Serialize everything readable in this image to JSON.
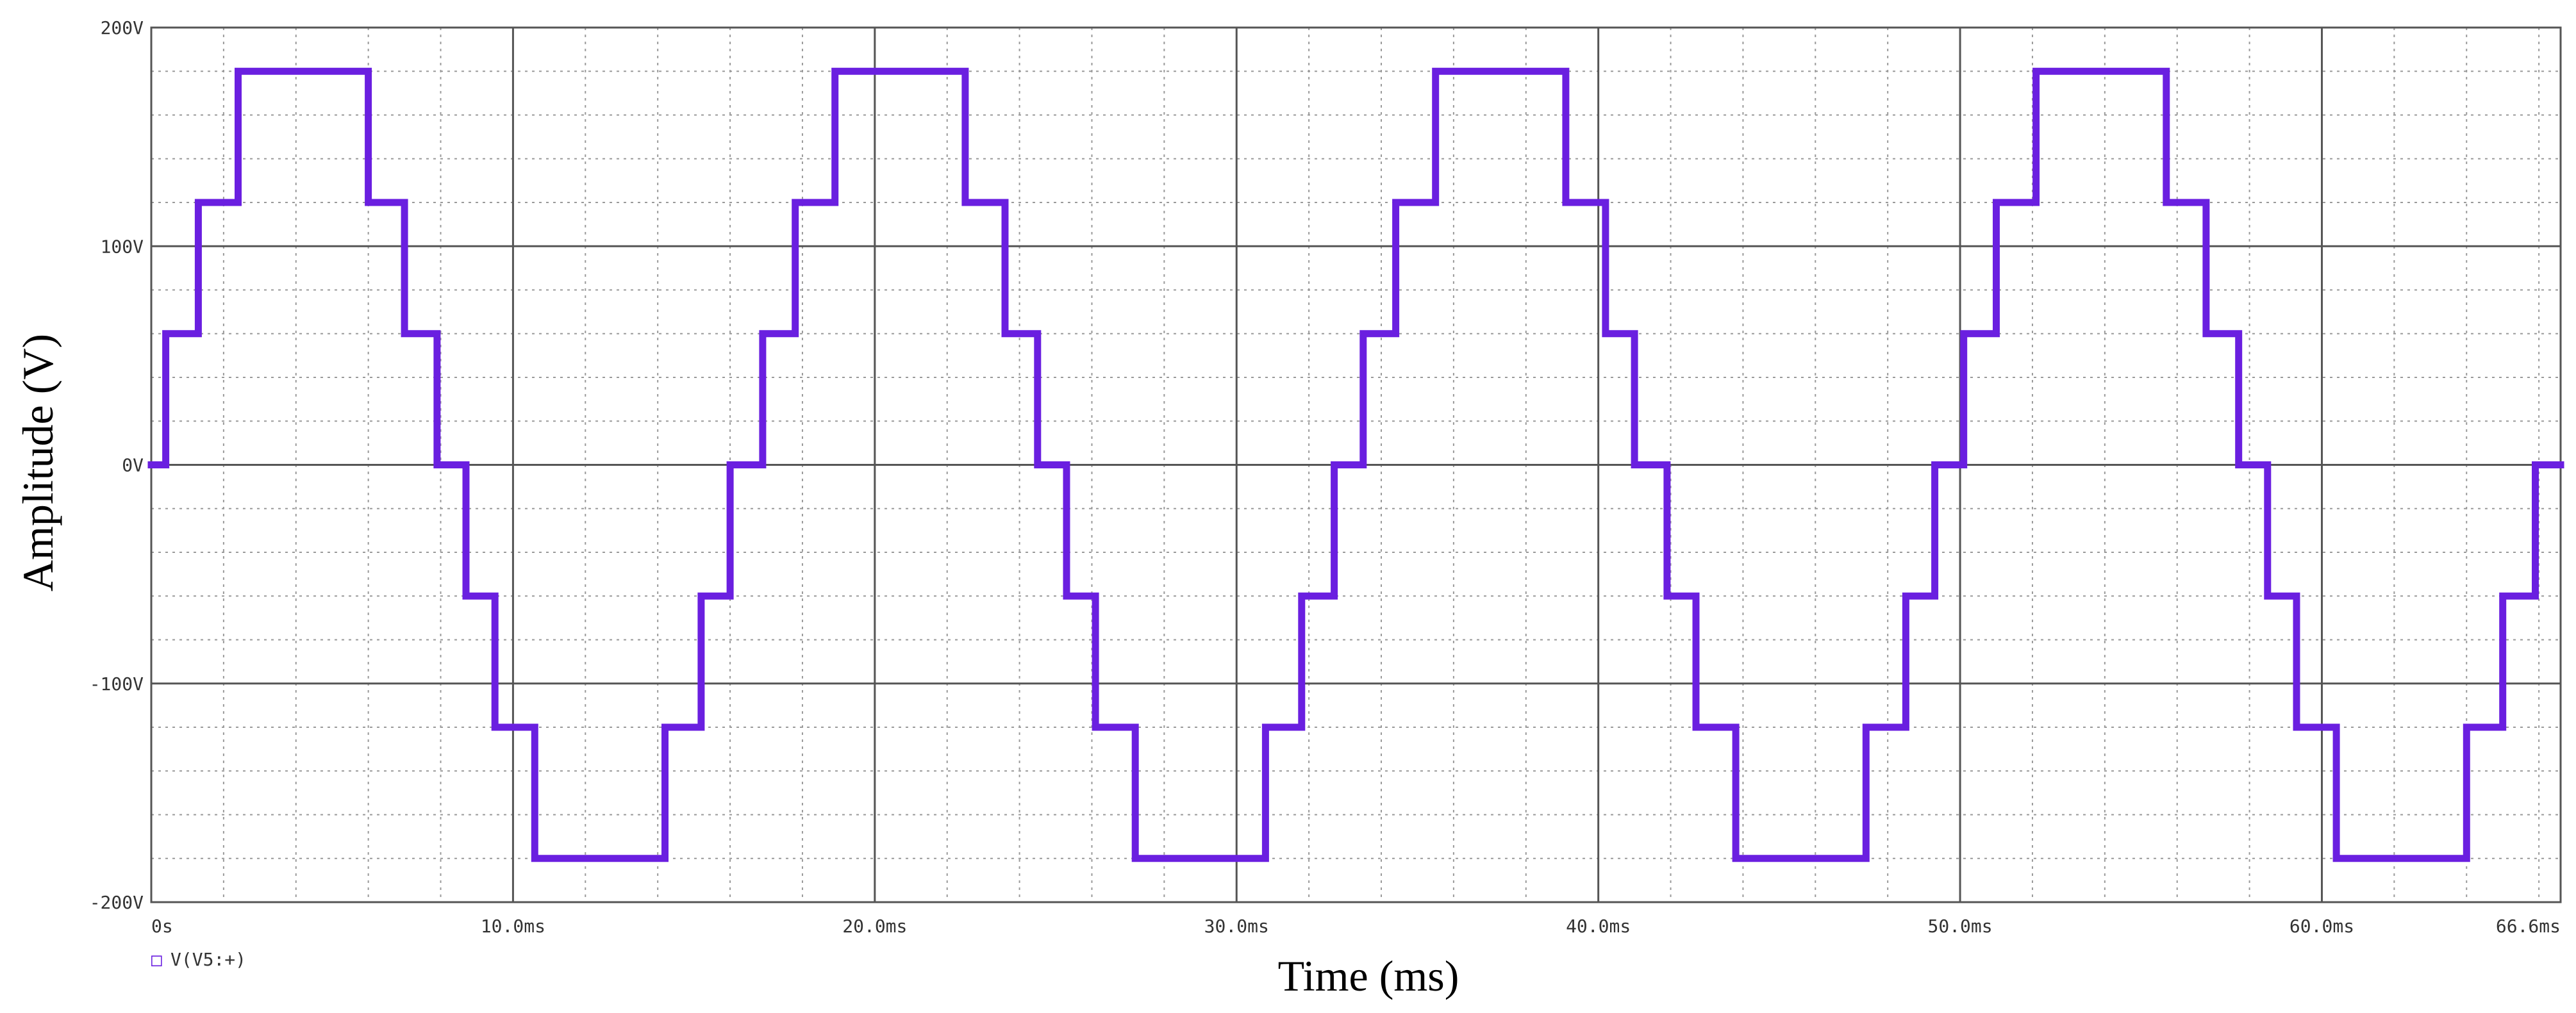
{
  "chart_data": {
    "type": "line",
    "title": "",
    "xlabel": "Time (ms)",
    "ylabel": "Amplitude (V)",
    "xlim": [
      0,
      66.6
    ],
    "ylim": [
      -200,
      200
    ],
    "x_tick_values": [
      0,
      10,
      20,
      30,
      40,
      50,
      60,
      66.6
    ],
    "x_tick_labels": [
      "0s",
      "10.0ms",
      "20.0ms",
      "30.0ms",
      "40.0ms",
      "50.0ms",
      "60.0ms",
      "66.6ms"
    ],
    "y_tick_values": [
      200,
      100,
      0,
      -100,
      -200
    ],
    "y_tick_labels": [
      "200V",
      "100V",
      "0V",
      "-100V",
      "-200V"
    ],
    "grid": true,
    "legend": {
      "placement": "bottom-left",
      "marker": "□"
    },
    "colors": {
      "series": "#6a1fe0",
      "major_grid": "#555555",
      "minor_grid": "#9a9a9a",
      "tick_text": "#333333"
    },
    "series": [
      {
        "name": "V(V5:+)",
        "x_units": "ms",
        "y_units": "V",
        "points": [
          [
            0,
            0
          ],
          [
            0.4,
            0
          ],
          [
            0.4,
            60
          ],
          [
            1.3,
            60
          ],
          [
            1.3,
            120
          ],
          [
            2.4,
            120
          ],
          [
            2.4,
            180
          ],
          [
            6.0,
            180
          ],
          [
            6.0,
            120
          ],
          [
            7.0,
            120
          ],
          [
            7.0,
            60
          ],
          [
            7.9,
            60
          ],
          [
            7.9,
            0
          ],
          [
            8.7,
            0
          ],
          [
            8.7,
            -60
          ],
          [
            9.5,
            -60
          ],
          [
            9.5,
            -120
          ],
          [
            10.6,
            -120
          ],
          [
            10.6,
            -180
          ],
          [
            14.2,
            -180
          ],
          [
            14.2,
            -120
          ],
          [
            15.2,
            -120
          ],
          [
            15.2,
            -60
          ],
          [
            16.0,
            -60
          ],
          [
            16.0,
            0
          ],
          [
            16.9,
            0
          ],
          [
            16.9,
            60
          ],
          [
            17.8,
            60
          ],
          [
            17.8,
            120
          ],
          [
            18.9,
            120
          ],
          [
            18.9,
            180
          ],
          [
            22.5,
            180
          ],
          [
            22.5,
            120
          ],
          [
            23.6,
            120
          ],
          [
            23.6,
            60
          ],
          [
            24.5,
            60
          ],
          [
            24.5,
            0
          ],
          [
            25.3,
            0
          ],
          [
            25.3,
            -60
          ],
          [
            26.1,
            -60
          ],
          [
            26.1,
            -120
          ],
          [
            27.2,
            -120
          ],
          [
            27.2,
            -180
          ],
          [
            30.8,
            -180
          ],
          [
            30.8,
            -120
          ],
          [
            31.8,
            -120
          ],
          [
            31.8,
            -60
          ],
          [
            32.7,
            -60
          ],
          [
            32.7,
            0
          ],
          [
            33.5,
            0
          ],
          [
            33.5,
            60
          ],
          [
            34.4,
            60
          ],
          [
            34.4,
            120
          ],
          [
            35.5,
            120
          ],
          [
            35.5,
            180
          ],
          [
            39.1,
            180
          ],
          [
            39.1,
            120
          ],
          [
            40.2,
            120
          ],
          [
            40.2,
            60
          ],
          [
            41.0,
            60
          ],
          [
            41.0,
            0
          ],
          [
            41.9,
            0
          ],
          [
            41.9,
            -60
          ],
          [
            42.7,
            -60
          ],
          [
            42.7,
            -120
          ],
          [
            43.8,
            -120
          ],
          [
            43.8,
            -180
          ],
          [
            47.4,
            -180
          ],
          [
            47.4,
            -120
          ],
          [
            48.5,
            -120
          ],
          [
            48.5,
            -60
          ],
          [
            49.3,
            -60
          ],
          [
            49.3,
            0
          ],
          [
            50.1,
            0
          ],
          [
            50.1,
            60
          ],
          [
            51.0,
            60
          ],
          [
            51.0,
            120
          ],
          [
            52.1,
            120
          ],
          [
            52.1,
            180
          ],
          [
            55.7,
            180
          ],
          [
            55.7,
            120
          ],
          [
            56.8,
            120
          ],
          [
            56.8,
            60
          ],
          [
            57.7,
            60
          ],
          [
            57.7,
            0
          ],
          [
            58.5,
            0
          ],
          [
            58.5,
            -60
          ],
          [
            59.3,
            -60
          ],
          [
            59.3,
            -120
          ],
          [
            60.4,
            -120
          ],
          [
            60.4,
            -180
          ],
          [
            64.0,
            -180
          ],
          [
            64.0,
            -120
          ],
          [
            65.0,
            -120
          ],
          [
            65.0,
            -60
          ],
          [
            65.9,
            -60
          ],
          [
            65.9,
            0
          ],
          [
            66.6,
            0
          ]
        ]
      }
    ]
  }
}
